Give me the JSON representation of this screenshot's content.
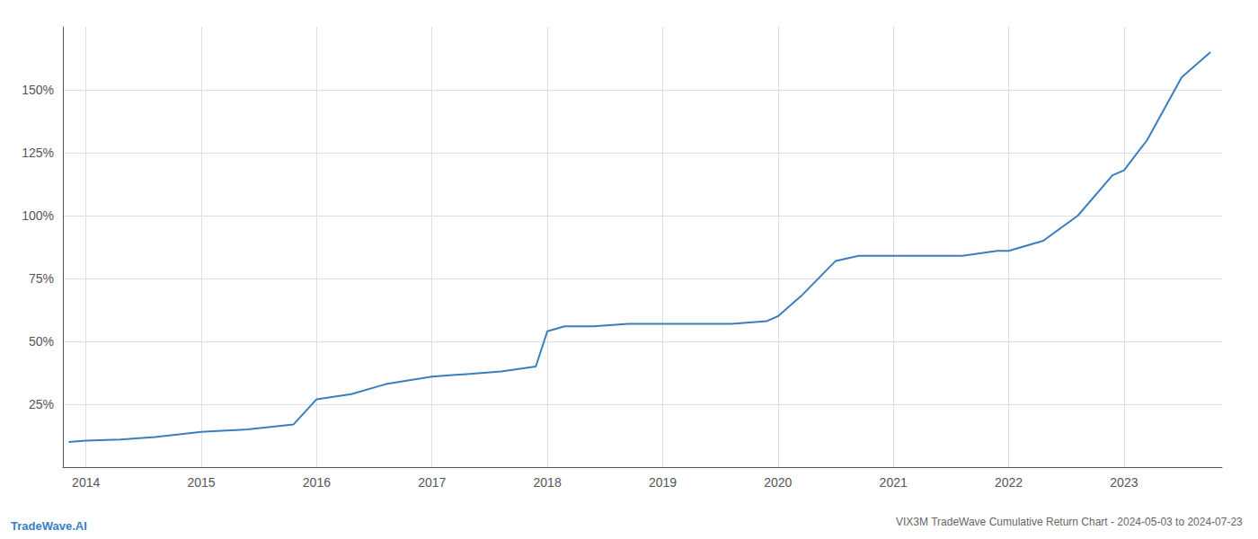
{
  "chart_data": {
    "type": "line",
    "title": "VIX3M TradeWave Cumulative Return Chart - 2024-05-03 to 2024-07-23",
    "annotations": [
      "TradeWave.AI"
    ],
    "x": [
      2013.85,
      2014.0,
      2014.3,
      2014.6,
      2015.0,
      2015.4,
      2015.8,
      2016.0,
      2016.3,
      2016.6,
      2017.0,
      2017.3,
      2017.6,
      2017.9,
      2018.0,
      2018.15,
      2018.4,
      2018.7,
      2019.0,
      2019.3,
      2019.6,
      2019.9,
      2020.0,
      2020.2,
      2020.5,
      2020.7,
      2020.9,
      2021.0,
      2021.3,
      2021.6,
      2021.9,
      2022.0,
      2022.3,
      2022.6,
      2022.9,
      2023.0,
      2023.2,
      2023.5,
      2023.75
    ],
    "values": [
      10,
      10.5,
      11,
      12,
      14,
      15,
      17,
      27,
      29,
      33,
      36,
      37,
      38,
      40,
      54,
      56,
      56,
      57,
      57,
      57,
      57,
      58,
      60,
      68,
      82,
      84,
      84,
      84,
      84,
      84,
      86,
      86,
      90,
      100,
      116,
      118,
      130,
      155,
      165
    ],
    "color": "#3a7ebf",
    "xlim": [
      2013.8,
      2023.85
    ],
    "xticks": [
      2014,
      2015,
      2016,
      2017,
      2018,
      2019,
      2020,
      2021,
      2022,
      2023
    ],
    "ylim": [
      0,
      175
    ],
    "yticks": [
      {
        "value": 25,
        "label": "25%"
      },
      {
        "value": 50,
        "label": "50%"
      },
      {
        "value": 75,
        "label": "75%"
      },
      {
        "value": 100,
        "label": "100%"
      },
      {
        "value": 125,
        "label": "125%"
      },
      {
        "value": 150,
        "label": "150%"
      }
    ],
    "grid": true
  }
}
